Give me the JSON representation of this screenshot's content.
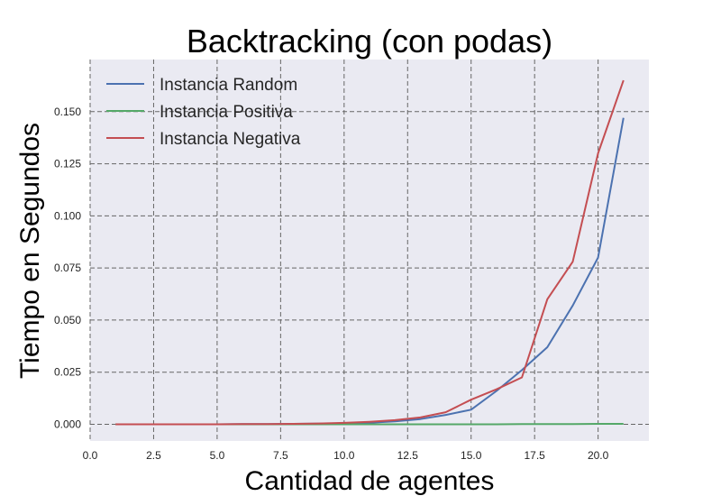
{
  "chart_data": {
    "type": "line",
    "title": "Backtracking (con podas)",
    "xlabel": "Cantidad de agentes",
    "ylabel": "Tiempo en Segundos",
    "xlim": [
      0,
      22
    ],
    "ylim": [
      -0.008,
      0.175
    ],
    "xticks": [
      0,
      2.5,
      5,
      7.5,
      10,
      12.5,
      15,
      17.5,
      20
    ],
    "xtick_labels": [
      "0.0",
      "2.5",
      "5.0",
      "7.5",
      "10.0",
      "12.5",
      "15.0",
      "17.5",
      "20.0"
    ],
    "yticks": [
      0,
      0.025,
      0.05,
      0.075,
      0.1,
      0.125,
      0.15
    ],
    "ytick_labels": [
      "0.000",
      "0.025",
      "0.050",
      "0.075",
      "0.100",
      "0.125",
      "0.150"
    ],
    "grid": true,
    "legend_position": "top-left",
    "x": [
      1,
      2,
      3,
      4,
      5,
      6,
      7,
      8,
      9,
      10,
      11,
      12,
      13,
      14,
      15,
      16,
      17,
      18,
      19,
      20,
      21
    ],
    "series": [
      {
        "name": "Instancia Random",
        "color": "#4c72b0",
        "values": [
          0,
          0,
          0,
          0,
          0,
          0.0001,
          0.0001,
          0.0002,
          0.0003,
          0.0005,
          0.0008,
          0.0014,
          0.0025,
          0.0045,
          0.007,
          0.016,
          0.026,
          0.037,
          0.057,
          0.08,
          0.147
        ]
      },
      {
        "name": "Instancia Positiva",
        "color": "#55a868",
        "values": [
          0,
          0,
          0,
          0,
          0,
          0,
          0,
          0,
          0,
          0,
          0,
          0,
          0,
          0,
          0,
          0,
          0.0001,
          0.0001,
          0.0001,
          0.0002,
          0.0002
        ]
      },
      {
        "name": "Instancia Negativa",
        "color": "#c44e52",
        "values": [
          0,
          0,
          0,
          0,
          0,
          0.0001,
          0.0001,
          0.0002,
          0.0004,
          0.0007,
          0.0012,
          0.002,
          0.0033,
          0.0058,
          0.0118,
          0.0168,
          0.0225,
          0.06,
          0.078,
          0.13,
          0.165
        ]
      }
    ]
  }
}
